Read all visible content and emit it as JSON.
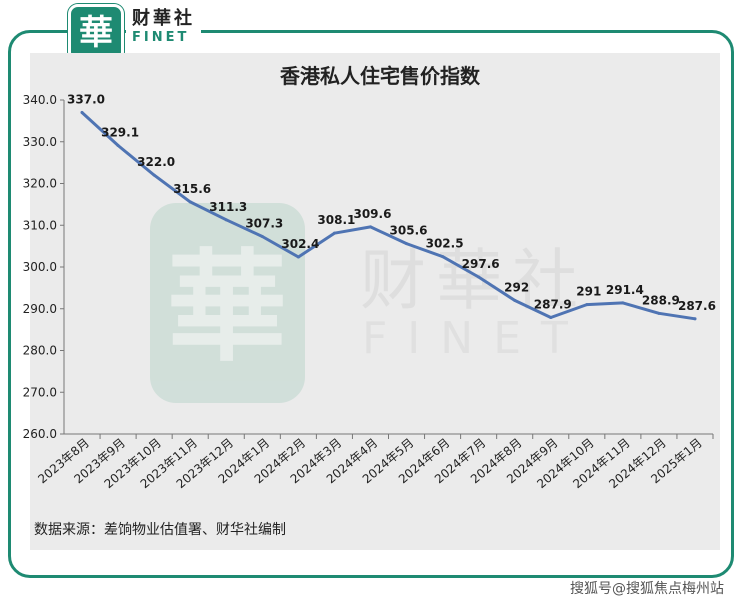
{
  "brand": {
    "logo_char": "華",
    "name_cn": "财華社",
    "name_en": "FINET"
  },
  "source_note": "数据来源：差饷物业估值署、财华社编制",
  "credit": "搜狐号@搜狐焦点梅州站",
  "colors": {
    "line": "#4f74b3",
    "brand": "#1e8a72"
  },
  "chart_data": {
    "type": "line",
    "title": "香港私人住宅售价指数",
    "categories": [
      "2023年8月",
      "2023年9月",
      "2023年10月",
      "2023年11月",
      "2023年12月",
      "2024年1月",
      "2024年2月",
      "2024年3月",
      "2024年4月",
      "2024年5月",
      "2024年6月",
      "2024年7月",
      "2024年8月",
      "2024年9月",
      "2024年10月",
      "2024年11月",
      "2024年12月",
      "2025年1月"
    ],
    "values": [
      337.0,
      329.1,
      322.0,
      315.6,
      311.3,
      307.3,
      302.4,
      308.1,
      309.6,
      305.6,
      302.5,
      297.6,
      292,
      287.9,
      291,
      291.4,
      288.9,
      287.6
    ],
    "value_labels": [
      "337.0",
      "329.1",
      "322.0",
      "315.6",
      "311.3",
      "307.3",
      "302.4",
      "308.1",
      "309.6",
      "305.6",
      "302.5",
      "297.6",
      "292",
      "287.9",
      "291",
      "291.4",
      "288.9",
      "287.6"
    ],
    "ylim": [
      260,
      340
    ],
    "yticks": [
      "260.0",
      "270.0",
      "280.0",
      "290.0",
      "300.0",
      "310.0",
      "320.0",
      "330.0",
      "340.0"
    ],
    "grid": false,
    "legend": "none"
  }
}
